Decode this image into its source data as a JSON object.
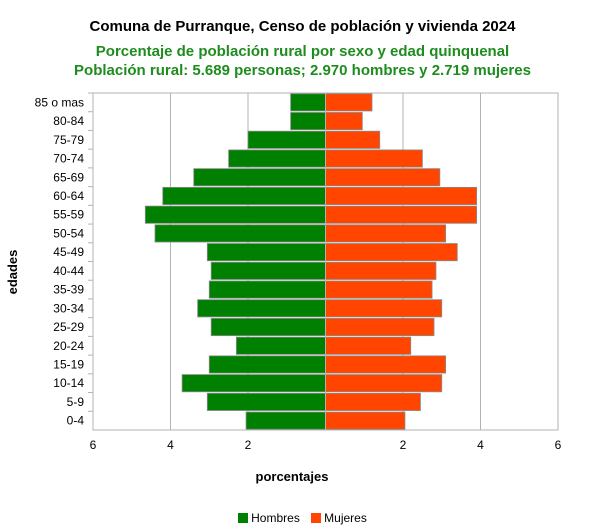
{
  "chart_data": {
    "type": "bar",
    "title": "Comuna de Purranque, Censo de población y vivienda 2024",
    "subtitle": [
      "Porcentaje de población rural por sexo y edad quinquenal",
      "Población rural: 5.689 personas; 2.970 hombres y 2.719 mujeres"
    ],
    "xlabel": "porcentajes",
    "ylabel": "edades",
    "xlim": [
      -6,
      6
    ],
    "xticks": [
      {
        "value": -6,
        "label": "6"
      },
      {
        "value": -4,
        "label": "4"
      },
      {
        "value": -2,
        "label": "2"
      },
      {
        "value": 2,
        "label": "2"
      },
      {
        "value": 4,
        "label": "4"
      },
      {
        "value": 6,
        "label": "6"
      }
    ],
    "grid": true,
    "legend_position": "bottom",
    "categories": [
      "85 o mas",
      "80-84",
      "75-79",
      "70-74",
      "65-69",
      "60-64",
      "55-59",
      "50-54",
      "45-49",
      "40-44",
      "35-39",
      "30-34",
      "25-29",
      "20-24",
      "15-19",
      "10-14",
      "5-9",
      "0-4"
    ],
    "series": [
      {
        "name": "Hombres",
        "color": "#008000",
        "values": [
          0.9,
          0.9,
          2.0,
          2.5,
          3.4,
          4.2,
          4.65,
          4.4,
          3.05,
          2.95,
          3.0,
          3.3,
          2.95,
          2.3,
          3.0,
          3.7,
          3.05,
          2.05
        ]
      },
      {
        "name": "Mujeres",
        "color": "#ff4500",
        "values": [
          1.2,
          0.95,
          1.4,
          2.5,
          2.95,
          3.9,
          3.9,
          3.1,
          3.4,
          2.85,
          2.75,
          3.0,
          2.8,
          2.2,
          3.1,
          3.0,
          2.45,
          2.05
        ]
      }
    ]
  }
}
